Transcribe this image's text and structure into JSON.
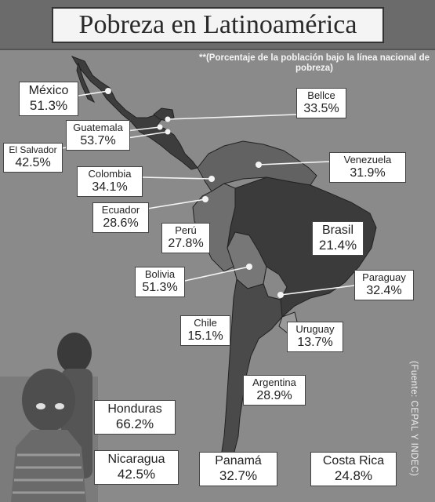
{
  "title": "Pobreza en Latinoamérica",
  "subtitle": "**(Porcentaje de la población bajo la línea nacional de pobreza)",
  "source": "(Fuente: CEPAL Y INDEC)",
  "countries": [
    {
      "name": "México",
      "value": "51.3%"
    },
    {
      "name": "Bellce",
      "value": "33.5%"
    },
    {
      "name": "Guatemala",
      "value": "53.7%"
    },
    {
      "name": "El Salvador",
      "value": "42.5%"
    },
    {
      "name": "Venezuela",
      "value": "31.9%"
    },
    {
      "name": "Colombia",
      "value": "34.1%"
    },
    {
      "name": "Ecuador",
      "value": "28.6%"
    },
    {
      "name": "Perú",
      "value": "27.8%"
    },
    {
      "name": "Brasil",
      "value": "21.4%"
    },
    {
      "name": "Bolivia",
      "value": "51.3%"
    },
    {
      "name": "Paraguay",
      "value": "32.4%"
    },
    {
      "name": "Chile",
      "value": "15.1%"
    },
    {
      "name": "Uruguay",
      "value": "13.7%"
    },
    {
      "name": "Argentina",
      "value": "28.9%"
    },
    {
      "name": "Honduras",
      "value": "66.2%"
    },
    {
      "name": "Nicaragua",
      "value": "42.5%"
    },
    {
      "name": "Panamá",
      "value": "32.7%"
    },
    {
      "name": "Costa Rica",
      "value": "24.8%"
    }
  ]
}
